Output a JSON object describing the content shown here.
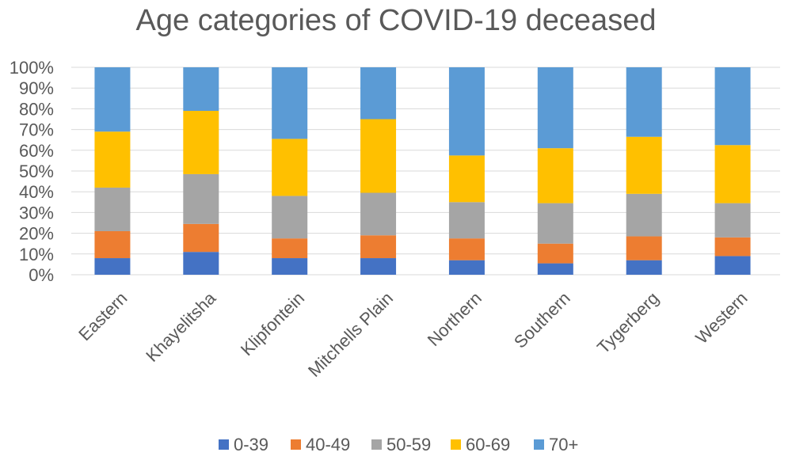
{
  "chart_data": {
    "type": "bar",
    "stacked": true,
    "percent_stacked": true,
    "title": "Age categories of COVID-19 deceased",
    "xlabel": "",
    "ylabel": "",
    "ylim": [
      0,
      100
    ],
    "yticks": [
      "0%",
      "10%",
      "20%",
      "30%",
      "40%",
      "50%",
      "60%",
      "70%",
      "80%",
      "90%",
      "100%"
    ],
    "grid": true,
    "legend": "bottom",
    "categories": [
      "Eastern",
      "Khayelitsha",
      "Klipfontein",
      "Mitchells Plain",
      "Northern",
      "Southern",
      "Tygerberg",
      "Western"
    ],
    "series": [
      {
        "name": "0-39",
        "color": "#4472c4",
        "values": [
          8,
          11,
          8,
          8,
          7,
          5.5,
          7,
          9
        ]
      },
      {
        "name": "40-49",
        "color": "#ed7d31",
        "values": [
          13,
          13.5,
          9.5,
          11,
          10.5,
          9.5,
          11.5,
          9
        ]
      },
      {
        "name": "50-59",
        "color": "#a5a5a5",
        "values": [
          21,
          24,
          20.5,
          20.5,
          17.5,
          19.5,
          20.5,
          16.5
        ]
      },
      {
        "name": "60-69",
        "color": "#ffc000",
        "values": [
          27,
          30.5,
          27.5,
          35.5,
          22.5,
          26.5,
          27.5,
          28
        ]
      },
      {
        "name": "70+",
        "color": "#5b9bd5",
        "values": [
          31,
          21,
          34.5,
          25,
          42.5,
          39,
          33.5,
          37.5
        ]
      }
    ]
  }
}
